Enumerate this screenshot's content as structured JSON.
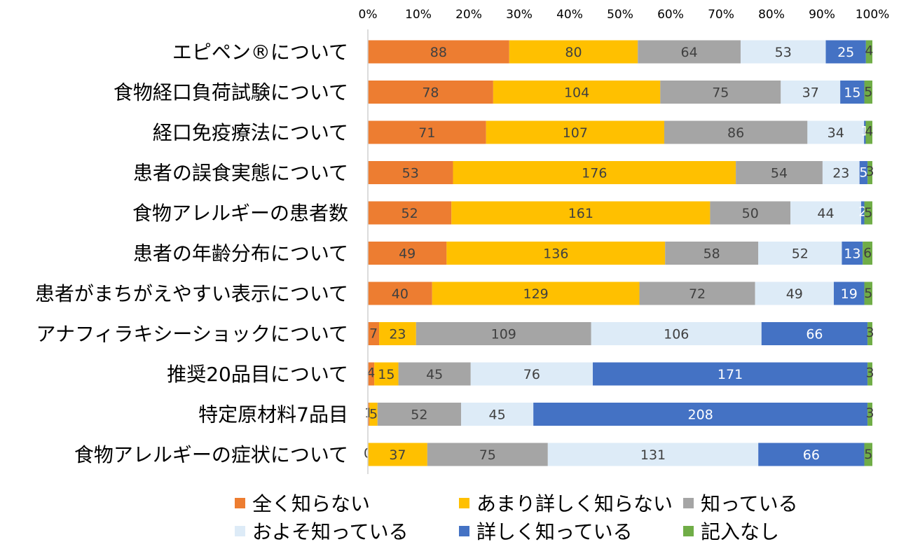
{
  "chart_data": {
    "type": "bar",
    "orientation": "horizontal",
    "stacked": "percent",
    "categories": [
      "エピペン®について",
      "食物経口負荷試験について",
      "経口免疫療法について",
      "患者の誤食実態について",
      "食物アレルギーの患者数",
      "患者の年齢分布について",
      "患者がまちがえやすい表示について",
      "アナフィラキシーショックについて",
      "推奨20品目について",
      "特定原材料7品目",
      "食物アレルギーの症状について"
    ],
    "series": [
      {
        "name": "全く知らない",
        "color": "#ED7D31",
        "label_color": "#404040",
        "values": [
          88,
          78,
          71,
          53,
          52,
          49,
          40,
          7,
          4,
          1,
          0
        ]
      },
      {
        "name": "あまり詳しく知らない",
        "color": "#FFC000",
        "label_color": "#404040",
        "values": [
          80,
          104,
          107,
          176,
          161,
          136,
          129,
          23,
          15,
          5,
          37
        ]
      },
      {
        "name": "知っている",
        "color": "#A5A5A5",
        "label_color": "#404040",
        "values": [
          64,
          75,
          86,
          54,
          50,
          58,
          72,
          109,
          45,
          52,
          75
        ]
      },
      {
        "name": "およそ知っている",
        "color": "#DDEBF7",
        "label_color": "#404040",
        "values": [
          53,
          37,
          34,
          23,
          44,
          52,
          49,
          106,
          76,
          45,
          131
        ]
      },
      {
        "name": "詳しく知っている",
        "color": "#4472C4",
        "label_color": "#FFFFFF",
        "values": [
          25,
          15,
          1,
          5,
          2,
          13,
          19,
          66,
          171,
          208,
          66
        ]
      },
      {
        "name": "記入なし",
        "color": "#70AD47",
        "label_color": "#404040",
        "values": [
          4,
          5,
          4,
          3,
          5,
          6,
          5,
          3,
          3,
          3,
          5
        ]
      }
    ],
    "xticks": [
      "0%",
      "10%",
      "20%",
      "30%",
      "40%",
      "50%",
      "60%",
      "70%",
      "80%",
      "90%",
      "100%"
    ],
    "xlim": [
      0,
      100
    ],
    "legend_position": "bottom"
  }
}
